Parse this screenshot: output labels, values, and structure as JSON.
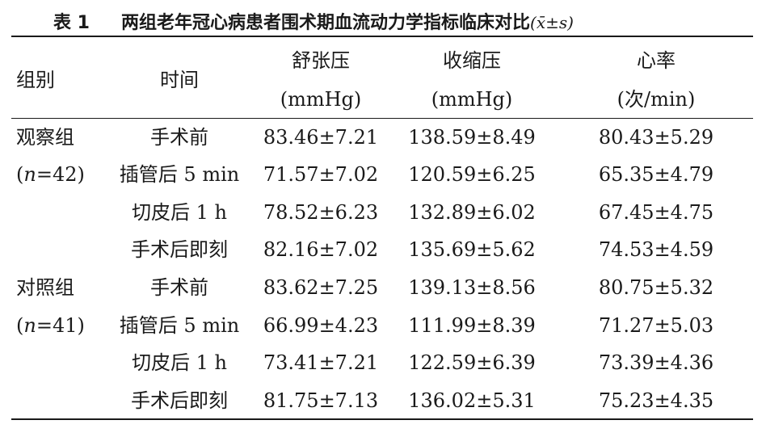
{
  "title": {
    "label": "表 1",
    "text": "两组老年冠心病患者围术期血流动力学指标临床对比",
    "symbol": "(x̄±s)"
  },
  "headers": {
    "group": "组别",
    "time": "时间",
    "diastolic": "舒张压",
    "diastolic_unit": "(mmHg)",
    "systolic": "收缩压",
    "systolic_unit": "(mmHg)",
    "heart_rate": "心率",
    "heart_rate_unit": "(次/min)"
  },
  "groups": [
    {
      "name": "观察组",
      "n_prefix": "(",
      "n_var": "n",
      "n_suffix": "=42)",
      "rows": [
        {
          "time": "手术前",
          "diastolic": "83.46±7.21",
          "systolic": "138.59±8.49",
          "heart_rate": "80.43±5.29"
        },
        {
          "time": "插管后 5 min",
          "diastolic": "71.57±7.02",
          "systolic": "120.59±6.25",
          "heart_rate": "65.35±4.79"
        },
        {
          "time": "切皮后 1 h",
          "diastolic": "78.52±6.23",
          "systolic": "132.89±6.02",
          "heart_rate": "67.45±4.75"
        },
        {
          "time": "手术后即刻",
          "diastolic": "82.16±7.02",
          "systolic": "135.69±5.62",
          "heart_rate": "74.53±4.59"
        }
      ]
    },
    {
      "name": "对照组",
      "n_prefix": "(",
      "n_var": "n",
      "n_suffix": "=41)",
      "rows": [
        {
          "time": "手术前",
          "diastolic": "83.62±7.25",
          "systolic": "139.13±8.56",
          "heart_rate": "80.75±5.32"
        },
        {
          "time": "插管后 5 min",
          "diastolic": "66.99±4.23",
          "systolic": "111.99±8.39",
          "heart_rate": "71.27±5.03"
        },
        {
          "time": "切皮后 1 h",
          "diastolic": "73.41±7.21",
          "systolic": "122.59±6.39",
          "heart_rate": "73.39±4.36"
        },
        {
          "time": "手术后即刻",
          "diastolic": "81.75±7.13",
          "systolic": "136.02±5.31",
          "heart_rate": "75.23±4.35"
        }
      ]
    }
  ]
}
